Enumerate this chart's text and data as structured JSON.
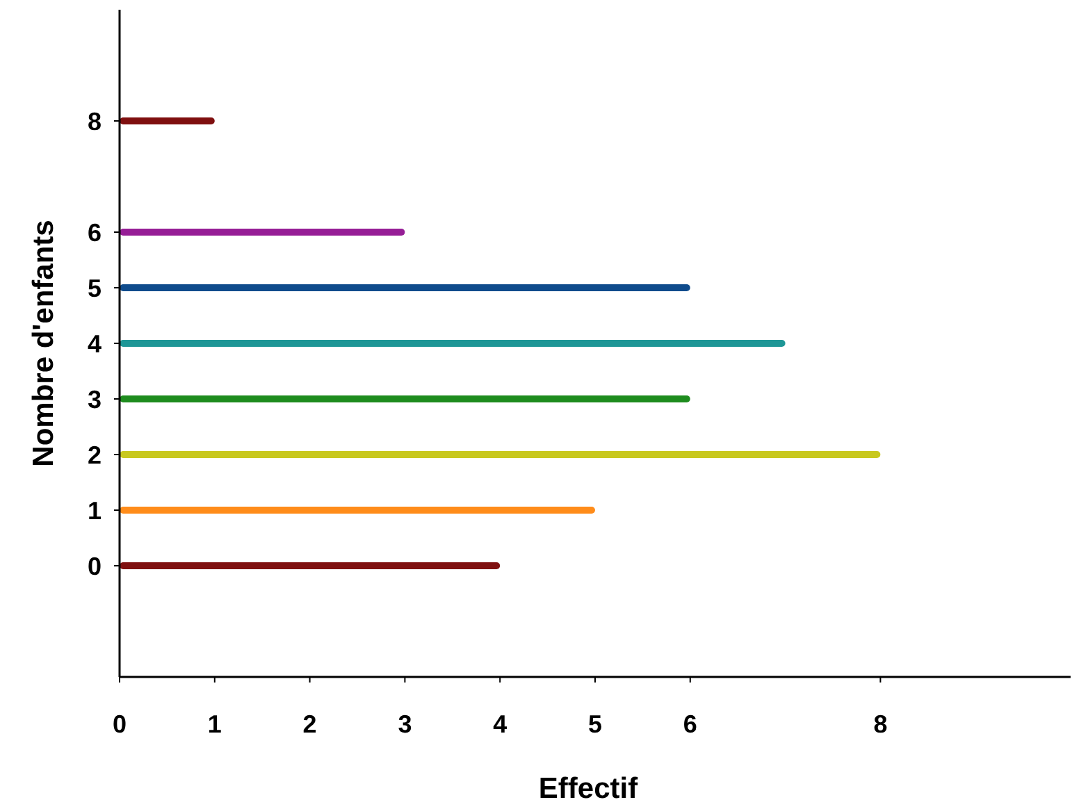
{
  "chart_data": {
    "type": "bar",
    "orientation": "horizontal",
    "xlabel": "Effectif",
    "ylabel": "Nombre d'enfants",
    "x": [
      0,
      1,
      2,
      3,
      4,
      5,
      6,
      8
    ],
    "values": [
      4,
      5,
      8,
      6,
      7,
      6,
      3,
      1
    ],
    "colors": [
      "#7f0f0f",
      "#ff8c1a",
      "#c8c81e",
      "#1e8c1e",
      "#1e9696",
      "#0f4b8c",
      "#961e96",
      "#7f0f0f"
    ],
    "xlim": [
      0,
      10
    ],
    "xticks": [
      0,
      1,
      2,
      3,
      4,
      5,
      6,
      8
    ],
    "ylim": [
      -2,
      10
    ],
    "yticks": [
      0,
      1,
      2,
      3,
      4,
      5,
      6,
      8
    ],
    "grid": false
  }
}
